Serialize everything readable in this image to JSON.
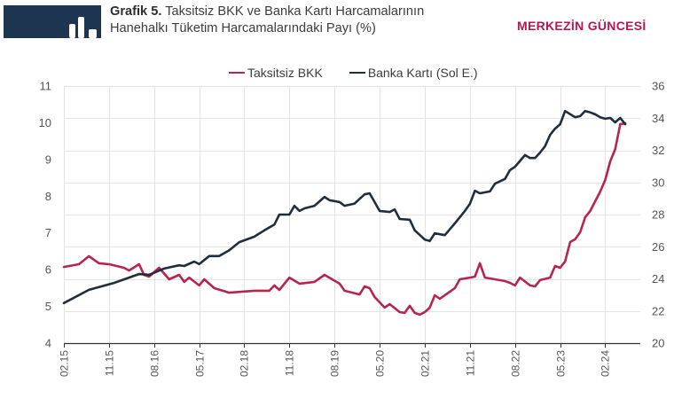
{
  "header": {
    "icon": "bar-chart-icon",
    "title_bold": "Grafik 5.",
    "title_line1": " Taksitsiz BKK ve Banka Kartı Harcamalarının",
    "title_line2": "Hanehalkı Tüketim Harcamalarındaki Payı (%)",
    "box_color": "#1d3550"
  },
  "brand": {
    "text": "MERKEZİN GÜNCESİ",
    "color": "#b5174f"
  },
  "legend": [
    {
      "label": "Taksitsiz BKK",
      "color": "#b8244f"
    },
    {
      "label": "Banka Kartı (Sol E.)",
      "color": "#1f2d3d"
    }
  ],
  "chart_data": {
    "type": "line",
    "title": "Grafik 5. Taksitsiz BKK ve Banka Kartı Harcamalarının Hanehalkı Tüketim Harcamalarındaki Payı (%)",
    "xlabel": "",
    "ylabel": "",
    "x_range": [
      "02.15",
      "09.24"
    ],
    "x_ticks": [
      "02.15",
      "11.15",
      "08.16",
      "05.17",
      "02.18",
      "11.18",
      "08.19",
      "05.20",
      "02.21",
      "11.21",
      "08.22",
      "05.23",
      "02.24"
    ],
    "y_left": {
      "min": 4,
      "max": 11,
      "ticks": [
        4,
        5,
        6,
        7,
        8,
        9,
        10,
        11
      ]
    },
    "y_right": {
      "min": 20,
      "max": 36,
      "ticks": [
        20,
        22,
        24,
        26,
        28,
        30,
        32,
        34,
        36
      ]
    },
    "grid": true,
    "legend_position": "top",
    "series": [
      {
        "name": "Taksitsiz BKK",
        "axis": "right",
        "color": "#b8244f",
        "points": [
          [
            "02.15",
            24.74
          ],
          [
            "05.15",
            24.91
          ],
          [
            "07.15",
            25.41
          ],
          [
            "09.15",
            24.97
          ],
          [
            "11.15",
            24.91
          ],
          [
            "02.16",
            24.69
          ],
          [
            "03.16",
            24.52
          ],
          [
            "05.16",
            24.91
          ],
          [
            "06.16",
            24.25
          ],
          [
            "07.16",
            24.14
          ],
          [
            "09.16",
            24.69
          ],
          [
            "11.16",
            23.97
          ],
          [
            "01.17",
            24.25
          ],
          [
            "02.17",
            23.81
          ],
          [
            "03.17",
            24.08
          ],
          [
            "05.17",
            23.59
          ],
          [
            "06.17",
            23.97
          ],
          [
            "08.17",
            23.42
          ],
          [
            "11.17",
            23.14
          ],
          [
            "04.18",
            23.26
          ],
          [
            "07.18",
            23.26
          ],
          [
            "08.18",
            23.59
          ],
          [
            "09.18",
            23.31
          ],
          [
            "11.18",
            24.08
          ],
          [
            "01.19",
            23.7
          ],
          [
            "04.19",
            23.81
          ],
          [
            "06.19",
            24.25
          ],
          [
            "09.19",
            23.7
          ],
          [
            "10.19",
            23.26
          ],
          [
            "01.20",
            23.03
          ],
          [
            "02.20",
            23.53
          ],
          [
            "03.20",
            23.42
          ],
          [
            "04.20",
            22.87
          ],
          [
            "06.20",
            22.21
          ],
          [
            "07.20",
            22.43
          ],
          [
            "09.20",
            21.93
          ],
          [
            "10.20",
            21.88
          ],
          [
            "11.20",
            22.32
          ],
          [
            "12.20",
            21.88
          ],
          [
            "01.21",
            21.77
          ],
          [
            "02.21",
            21.93
          ],
          [
            "03.21",
            22.21
          ],
          [
            "04.21",
            22.98
          ],
          [
            "05.21",
            22.76
          ],
          [
            "08.21",
            23.42
          ],
          [
            "09.21",
            23.97
          ],
          [
            "11.21",
            24.08
          ],
          [
            "12.21",
            24.14
          ],
          [
            "01.22",
            24.97
          ],
          [
            "02.22",
            24.08
          ],
          [
            "03.22",
            24.03
          ],
          [
            "06.22",
            23.86
          ],
          [
            "07.22",
            23.75
          ],
          [
            "08.22",
            23.59
          ],
          [
            "09.22",
            24.08
          ],
          [
            "11.22",
            23.59
          ],
          [
            "12.22",
            23.53
          ],
          [
            "01.23",
            23.92
          ],
          [
            "03.23",
            24.08
          ],
          [
            "04.23",
            24.8
          ],
          [
            "05.23",
            24.69
          ],
          [
            "06.23",
            25.08
          ],
          [
            "07.23",
            26.29
          ],
          [
            "08.23",
            26.46
          ],
          [
            "09.23",
            26.9
          ],
          [
            "10.23",
            27.83
          ],
          [
            "11.23",
            28.22
          ],
          [
            "12.23",
            28.83
          ],
          [
            "01.24",
            29.43
          ],
          [
            "02.24",
            30.15
          ],
          [
            "03.24",
            31.31
          ],
          [
            "04.24",
            32.08
          ],
          [
            "05.24",
            33.63
          ],
          [
            "06.24",
            33.68
          ]
        ]
      },
      {
        "name": "Banka Kartı (Sol E.)",
        "axis": "left",
        "color": "#1f2d3d",
        "points": [
          [
            "02.15",
            5.09
          ],
          [
            "07.15",
            5.45
          ],
          [
            "12.15",
            5.64
          ],
          [
            "05.16",
            5.88
          ],
          [
            "07.16",
            5.86
          ],
          [
            "10.16",
            6.03
          ],
          [
            "01.17",
            6.12
          ],
          [
            "02.17",
            6.1
          ],
          [
            "04.17",
            6.22
          ],
          [
            "05.17",
            6.15
          ],
          [
            "07.17",
            6.37
          ],
          [
            "09.17",
            6.37
          ],
          [
            "11.17",
            6.53
          ],
          [
            "01.18",
            6.75
          ],
          [
            "04.18",
            6.9
          ],
          [
            "06.18",
            7.07
          ],
          [
            "08.18",
            7.23
          ],
          [
            "09.18",
            7.5
          ],
          [
            "11.18",
            7.5
          ],
          [
            "12.18",
            7.74
          ],
          [
            "01.19",
            7.6
          ],
          [
            "02.19",
            7.67
          ],
          [
            "04.19",
            7.74
          ],
          [
            "06.19",
            7.98
          ],
          [
            "07.19",
            7.89
          ],
          [
            "09.19",
            7.84
          ],
          [
            "10.19",
            7.74
          ],
          [
            "12.19",
            7.8
          ],
          [
            "02.20",
            8.05
          ],
          [
            "03.20",
            8.08
          ],
          [
            "05.20",
            7.6
          ],
          [
            "07.20",
            7.57
          ],
          [
            "08.20",
            7.64
          ],
          [
            "09.20",
            7.38
          ],
          [
            "11.20",
            7.36
          ],
          [
            "12.20",
            7.07
          ],
          [
            "02.21",
            6.82
          ],
          [
            "03.21",
            6.78
          ],
          [
            "04.21",
            6.99
          ],
          [
            "06.21",
            6.94
          ],
          [
            "08.21",
            7.26
          ],
          [
            "10.21",
            7.6
          ],
          [
            "11.21",
            7.79
          ],
          [
            "12.21",
            8.15
          ],
          [
            "01.22",
            8.08
          ],
          [
            "03.22",
            8.13
          ],
          [
            "04.22",
            8.34
          ],
          [
            "06.22",
            8.47
          ],
          [
            "07.22",
            8.71
          ],
          [
            "08.22",
            8.8
          ],
          [
            "10.22",
            9.12
          ],
          [
            "11.22",
            9.04
          ],
          [
            "12.22",
            9.04
          ],
          [
            "01.23",
            9.19
          ],
          [
            "02.23",
            9.36
          ],
          [
            "03.23",
            9.67
          ],
          [
            "04.23",
            9.84
          ],
          [
            "05.23",
            9.96
          ],
          [
            "06.23",
            10.32
          ],
          [
            "08.23",
            10.15
          ],
          [
            "09.23",
            10.18
          ],
          [
            "10.23",
            10.32
          ],
          [
            "11.23",
            10.28
          ],
          [
            "12.23",
            10.23
          ],
          [
            "01.24",
            10.15
          ],
          [
            "02.24",
            10.11
          ],
          [
            "03.24",
            10.13
          ],
          [
            "04.24",
            10.01
          ],
          [
            "05.24",
            10.13
          ],
          [
            "06.24",
            9.96
          ]
        ]
      }
    ]
  }
}
